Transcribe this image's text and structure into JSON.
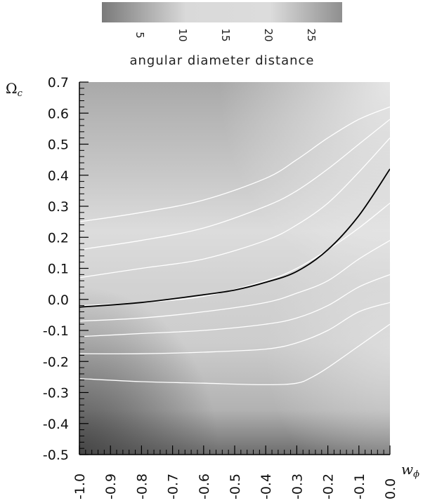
{
  "chart_data": {
    "type": "heatmap",
    "title": "",
    "colorbar": {
      "label": "angular diameter distance",
      "ticks": [
        "5",
        "10",
        "15",
        "20",
        "25"
      ],
      "tick_values": [
        5,
        10,
        15,
        20,
        25
      ],
      "range": [
        1,
        29
      ]
    },
    "xlabel": {
      "main": "w",
      "sub": "ϕ"
    },
    "ylabel": {
      "main": "Ω",
      "sub": "c"
    },
    "xlim": [
      -1.0,
      0.0
    ],
    "ylim": [
      -0.5,
      0.7
    ],
    "xticks": [
      "-1.0",
      "-0.9",
      "-0.8",
      "-0.7",
      "-0.6",
      "-0.5",
      "-0.4",
      "-0.3",
      "-0.2",
      "-0.1",
      "0.0"
    ],
    "xtick_values": [
      -1.0,
      -0.9,
      -0.8,
      -0.7,
      -0.6,
      -0.5,
      -0.4,
      -0.3,
      -0.2,
      -0.1,
      0.0
    ],
    "yticks": [
      "0.7",
      "0.6",
      "0.5",
      "0.4",
      "0.3",
      "0.2",
      "0.1",
      "0.0",
      "-0.1",
      "-0.2",
      "-0.3",
      "-0.4",
      "-0.5"
    ],
    "ytick_values": [
      0.7,
      0.6,
      0.5,
      0.4,
      0.3,
      0.2,
      0.1,
      0.0,
      -0.1,
      -0.2,
      -0.3,
      -0.4,
      -0.5
    ],
    "contour_color": "#ffffff",
    "highlight_color": "#000000",
    "contours": [
      {
        "highlight": false,
        "points": [
          [
            -1.0,
            0.25
          ],
          [
            -0.8,
            0.28
          ],
          [
            -0.6,
            0.32
          ],
          [
            -0.4,
            0.39
          ],
          [
            -0.3,
            0.45
          ],
          [
            -0.2,
            0.52
          ],
          [
            -0.1,
            0.58
          ],
          [
            0.0,
            0.62
          ]
        ]
      },
      {
        "highlight": false,
        "points": [
          [
            -1.0,
            0.16
          ],
          [
            -0.8,
            0.19
          ],
          [
            -0.6,
            0.23
          ],
          [
            -0.4,
            0.3
          ],
          [
            -0.3,
            0.35
          ],
          [
            -0.2,
            0.42
          ],
          [
            -0.1,
            0.5
          ],
          [
            0.0,
            0.58
          ]
        ]
      },
      {
        "highlight": false,
        "points": [
          [
            -1.0,
            0.07
          ],
          [
            -0.8,
            0.1
          ],
          [
            -0.6,
            0.13
          ],
          [
            -0.4,
            0.19
          ],
          [
            -0.3,
            0.24
          ],
          [
            -0.2,
            0.31
          ],
          [
            -0.1,
            0.41
          ],
          [
            0.0,
            0.52
          ]
        ]
      },
      {
        "highlight": true,
        "points": [
          [
            -1.0,
            -0.025
          ],
          [
            -0.8,
            -0.01
          ],
          [
            -0.6,
            0.015
          ],
          [
            -0.5,
            0.03
          ],
          [
            -0.4,
            0.055
          ],
          [
            -0.3,
            0.09
          ],
          [
            -0.2,
            0.16
          ],
          [
            -0.1,
            0.27
          ],
          [
            0.0,
            0.42
          ]
        ]
      },
      {
        "highlight": false,
        "points": [
          [
            -1.0,
            -0.02
          ],
          [
            -0.8,
            -0.01
          ],
          [
            -0.6,
            0.01
          ],
          [
            -0.4,
            0.06
          ],
          [
            -0.3,
            0.1
          ],
          [
            -0.2,
            0.16
          ],
          [
            -0.1,
            0.23
          ],
          [
            0.0,
            0.31
          ]
        ]
      },
      {
        "highlight": false,
        "points": [
          [
            -1.0,
            -0.07
          ],
          [
            -0.8,
            -0.06
          ],
          [
            -0.6,
            -0.04
          ],
          [
            -0.4,
            -0.01
          ],
          [
            -0.3,
            0.02
          ],
          [
            -0.2,
            0.06
          ],
          [
            -0.1,
            0.13
          ],
          [
            0.0,
            0.19
          ]
        ]
      },
      {
        "highlight": false,
        "points": [
          [
            -1.0,
            -0.12
          ],
          [
            -0.8,
            -0.11
          ],
          [
            -0.6,
            -0.1
          ],
          [
            -0.4,
            -0.08
          ],
          [
            -0.3,
            -0.06
          ],
          [
            -0.2,
            -0.02
          ],
          [
            -0.1,
            0.04
          ],
          [
            0.0,
            0.08
          ]
        ]
      },
      {
        "highlight": false,
        "points": [
          [
            -1.0,
            -0.175
          ],
          [
            -0.8,
            -0.175
          ],
          [
            -0.6,
            -0.17
          ],
          [
            -0.4,
            -0.16
          ],
          [
            -0.3,
            -0.14
          ],
          [
            -0.2,
            -0.1
          ],
          [
            -0.1,
            -0.04
          ],
          [
            0.0,
            -0.01
          ]
        ]
      },
      {
        "highlight": false,
        "points": [
          [
            -1.0,
            -0.255
          ],
          [
            -0.8,
            -0.265
          ],
          [
            -0.6,
            -0.27
          ],
          [
            -0.4,
            -0.275
          ],
          [
            -0.3,
            -0.27
          ],
          [
            -0.25,
            -0.25
          ],
          [
            -0.2,
            -0.22
          ],
          [
            -0.1,
            -0.15
          ],
          [
            0.0,
            -0.08
          ]
        ]
      }
    ]
  }
}
